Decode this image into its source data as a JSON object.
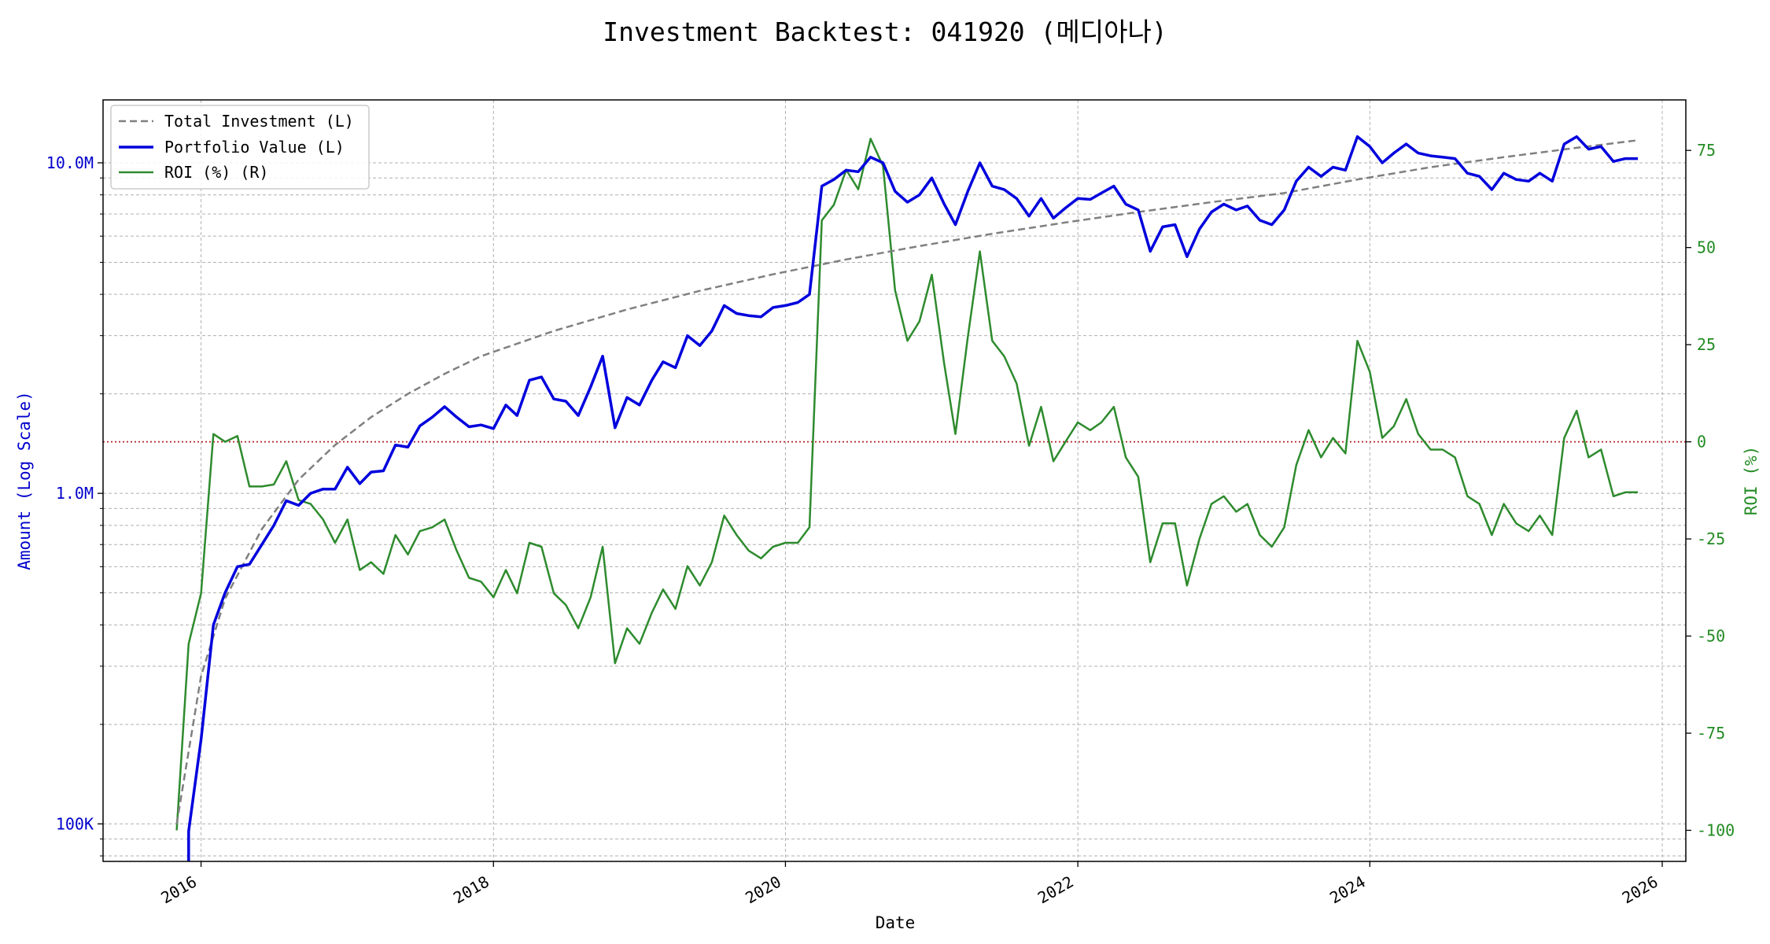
{
  "chart_data": {
    "type": "line",
    "title": "Investment Backtest: 041920 (메디아나)",
    "xlabel": "Date",
    "ylabel_left": "Amount (Log Scale)",
    "ylabel_right": "ROI (%)",
    "x_range": [
      "2015-05-01",
      "2026-03-01"
    ],
    "y_left_scale": "log",
    "y_left_range": [
      77000,
      15500000
    ],
    "y_right_range": [
      -108,
      88
    ],
    "x_ticks": [
      "2016",
      "2018",
      "2020",
      "2022",
      "2024",
      "2026"
    ],
    "x_tick_dates": [
      "2016-01-01",
      "2018-01-01",
      "2020-01-01",
      "2022-01-01",
      "2024-01-01",
      "2026-01-01"
    ],
    "y_left_ticks": [
      {
        "value": 100000,
        "label": "100K"
      },
      {
        "value": 1000000,
        "label": "1.0M"
      },
      {
        "value": 10000000,
        "label": "10.0M"
      }
    ],
    "y_right_ticks": [
      -100,
      -75,
      -50,
      -25,
      0,
      25,
      50,
      75
    ],
    "grid": true,
    "legend_position": "top-left",
    "zero_line": {
      "axis": "right",
      "value": 0,
      "color": "#b22222",
      "style": "dotted"
    },
    "colors": {
      "investment": "#808080",
      "portfolio": "#0000dd",
      "roi": "#2e8b2e"
    },
    "series": [
      {
        "name": "Total Investment (L)",
        "axis": "left",
        "style": "dashed",
        "x": [
          "2015-11-01",
          "2016-01-01",
          "2016-03-01",
          "2016-06-01",
          "2016-09-01",
          "2016-12-01",
          "2017-03-01",
          "2017-06-01",
          "2017-09-01",
          "2017-12-01",
          "2018-06-01",
          "2018-12-01",
          "2019-06-01",
          "2019-12-01",
          "2020-06-01",
          "2020-12-01",
          "2021-06-01",
          "2021-12-01",
          "2022-06-01",
          "2022-12-01",
          "2023-06-01",
          "2023-12-01",
          "2024-06-01",
          "2024-12-01",
          "2025-06-01",
          "2025-11-01"
        ],
        "y": [
          100000,
          280000,
          480000,
          780000,
          1100000,
          1400000,
          1700000,
          2000000,
          2300000,
          2600000,
          3100000,
          3600000,
          4100000,
          4600000,
          5100000,
          5600000,
          6100000,
          6600000,
          7100000,
          7600000,
          8100000,
          8900000,
          9700000,
          10400000,
          11100000,
          11700000
        ]
      },
      {
        "name": "Portfolio Value (L)",
        "axis": "left",
        "style": "solid",
        "x": [
          "2015-12-01",
          "2015-12-01",
          "2016-01-01",
          "2016-02-01",
          "2016-03-01",
          "2016-04-01",
          "2016-05-01",
          "2016-06-01",
          "2016-07-01",
          "2016-08-01",
          "2016-09-01",
          "2016-10-01",
          "2016-11-01",
          "2016-12-01",
          "2017-01-01",
          "2017-02-01",
          "2017-03-01",
          "2017-04-01",
          "2017-05-01",
          "2017-06-01",
          "2017-07-01",
          "2017-08-01",
          "2017-09-01",
          "2017-10-01",
          "2017-11-01",
          "2017-12-01",
          "2018-01-01",
          "2018-02-01",
          "2018-03-01",
          "2018-04-01",
          "2018-05-01",
          "2018-06-01",
          "2018-07-01",
          "2018-08-01",
          "2018-09-01",
          "2018-10-01",
          "2018-11-01",
          "2018-12-01",
          "2019-01-01",
          "2019-02-01",
          "2019-03-01",
          "2019-04-01",
          "2019-05-01",
          "2019-06-01",
          "2019-07-01",
          "2019-08-01",
          "2019-09-01",
          "2019-10-01",
          "2019-11-01",
          "2019-12-01",
          "2020-01-01",
          "2020-02-01",
          "2020-03-01",
          "2020-04-01",
          "2020-05-01",
          "2020-06-01",
          "2020-07-01",
          "2020-08-01",
          "2020-09-01",
          "2020-10-01",
          "2020-11-01",
          "2020-12-01",
          "2021-01-01",
          "2021-02-01",
          "2021-03-01",
          "2021-04-01",
          "2021-05-01",
          "2021-06-01",
          "2021-07-01",
          "2021-08-01",
          "2021-09-01",
          "2021-10-01",
          "2021-11-01",
          "2021-12-01",
          "2022-01-01",
          "2022-02-01",
          "2022-03-01",
          "2022-04-01",
          "2022-05-01",
          "2022-06-01",
          "2022-07-01",
          "2022-08-01",
          "2022-09-01",
          "2022-10-01",
          "2022-11-01",
          "2022-12-01",
          "2023-01-01",
          "2023-02-01",
          "2023-03-01",
          "2023-04-01",
          "2023-05-01",
          "2023-06-01",
          "2023-07-01",
          "2023-08-01",
          "2023-09-01",
          "2023-10-01",
          "2023-11-01",
          "2023-12-01",
          "2024-01-01",
          "2024-02-01",
          "2024-03-01",
          "2024-04-01",
          "2024-05-01",
          "2024-06-01",
          "2024-07-01",
          "2024-08-01",
          "2024-09-01",
          "2024-10-01",
          "2024-11-01",
          "2024-12-01",
          "2025-01-01",
          "2025-02-01",
          "2025-03-01",
          "2025-04-01",
          "2025-05-01",
          "2025-06-01",
          "2025-07-01",
          "2025-08-01",
          "2025-09-01",
          "2025-10-01",
          "2025-11-01"
        ],
        "y": [
          77000,
          95000,
          180000,
          400000,
          500000,
          600000,
          610000,
          700000,
          800000,
          950000,
          920000,
          1000000,
          1030000,
          1030000,
          1200000,
          1070000,
          1160000,
          1170000,
          1400000,
          1380000,
          1600000,
          1700000,
          1830000,
          1700000,
          1590000,
          1610000,
          1570000,
          1850000,
          1720000,
          2200000,
          2250000,
          1930000,
          1900000,
          1720000,
          2100000,
          2600000,
          1580000,
          1950000,
          1850000,
          2200000,
          2500000,
          2400000,
          3000000,
          2800000,
          3100000,
          3700000,
          3500000,
          3450000,
          3420000,
          3650000,
          3700000,
          3780000,
          4000000,
          8500000,
          8900000,
          9500000,
          9400000,
          10400000,
          10000000,
          8200000,
          7600000,
          8000000,
          9000000,
          7500000,
          6500000,
          8200000,
          10000000,
          8500000,
          8300000,
          7800000,
          6900000,
          7800000,
          6800000,
          7300000,
          7800000,
          7750000,
          8100000,
          8500000,
          7500000,
          7200000,
          5400000,
          6400000,
          6500000,
          5200000,
          6300000,
          7100000,
          7500000,
          7200000,
          7400000,
          6700000,
          6500000,
          7200000,
          8800000,
          9700000,
          9100000,
          9700000,
          9500000,
          12000000,
          11200000,
          10000000,
          10700000,
          11400000,
          10700000,
          10500000,
          10400000,
          10300000,
          9300000,
          9100000,
          8300000,
          9300000,
          8900000,
          8800000,
          9300000,
          8800000,
          11400000,
          12000000,
          11000000,
          11200000,
          10100000,
          10300000,
          10300000
        ]
      },
      {
        "name": "ROI (%) (R)",
        "axis": "right",
        "style": "solid",
        "x": [
          "2015-11-01",
          "2015-12-01",
          "2016-01-01",
          "2016-02-01",
          "2016-03-01",
          "2016-04-01",
          "2016-05-01",
          "2016-06-01",
          "2016-07-01",
          "2016-08-01",
          "2016-09-01",
          "2016-10-01",
          "2016-11-01",
          "2016-12-01",
          "2017-01-01",
          "2017-02-01",
          "2017-03-01",
          "2017-04-01",
          "2017-05-01",
          "2017-06-01",
          "2017-07-01",
          "2017-08-01",
          "2017-09-01",
          "2017-10-01",
          "2017-11-01",
          "2017-12-01",
          "2018-01-01",
          "2018-02-01",
          "2018-03-01",
          "2018-04-01",
          "2018-05-01",
          "2018-06-01",
          "2018-07-01",
          "2018-08-01",
          "2018-09-01",
          "2018-10-01",
          "2018-11-01",
          "2018-12-01",
          "2019-01-01",
          "2019-02-01",
          "2019-03-01",
          "2019-04-01",
          "2019-05-01",
          "2019-06-01",
          "2019-07-01",
          "2019-08-01",
          "2019-09-01",
          "2019-10-01",
          "2019-11-01",
          "2019-12-01",
          "2020-01-01",
          "2020-02-01",
          "2020-03-01",
          "2020-04-01",
          "2020-05-01",
          "2020-06-01",
          "2020-07-01",
          "2020-08-01",
          "2020-09-01",
          "2020-10-01",
          "2020-11-01",
          "2020-12-01",
          "2021-01-01",
          "2021-02-01",
          "2021-03-01",
          "2021-04-01",
          "2021-05-01",
          "2021-06-01",
          "2021-07-01",
          "2021-08-01",
          "2021-09-01",
          "2021-10-01",
          "2021-11-01",
          "2021-12-01",
          "2022-01-01",
          "2022-02-01",
          "2022-03-01",
          "2022-04-01",
          "2022-05-01",
          "2022-06-01",
          "2022-07-01",
          "2022-08-01",
          "2022-09-01",
          "2022-10-01",
          "2022-11-01",
          "2022-12-01",
          "2023-01-01",
          "2023-02-01",
          "2023-03-01",
          "2023-04-01",
          "2023-05-01",
          "2023-06-01",
          "2023-07-01",
          "2023-08-01",
          "2023-09-01",
          "2023-10-01",
          "2023-11-01",
          "2023-12-01",
          "2024-01-01",
          "2024-02-01",
          "2024-03-01",
          "2024-04-01",
          "2024-05-01",
          "2024-06-01",
          "2024-07-01",
          "2024-08-01",
          "2024-09-01",
          "2024-10-01",
          "2024-11-01",
          "2024-12-01",
          "2025-01-01",
          "2025-02-01",
          "2025-03-01",
          "2025-04-01",
          "2025-05-01",
          "2025-06-01",
          "2025-07-01",
          "2025-08-01",
          "2025-09-01",
          "2025-10-01",
          "2025-11-01"
        ],
        "y": [
          -100,
          -52,
          -39,
          2,
          0,
          1.5,
          -11.5,
          -11.5,
          -11,
          -5,
          -15,
          -16,
          -20,
          -26,
          -20,
          -33,
          -31,
          -34,
          -24,
          -29,
          -23,
          -22,
          -20,
          -28,
          -35,
          -36,
          -40,
          -33,
          -39,
          -26,
          -27,
          -39,
          -42,
          -48,
          -40,
          -27,
          -57,
          -48,
          -52,
          -44,
          -38,
          -43,
          -32,
          -37,
          -31,
          -19,
          -24,
          -28,
          -30,
          -27,
          -26,
          -26,
          -22,
          57,
          61,
          70,
          65,
          78,
          71,
          39,
          26,
          31,
          43,
          20,
          2,
          27,
          49,
          26,
          22,
          15,
          -1,
          9,
          -5,
          0,
          5,
          3,
          5,
          9,
          -4,
          -9,
          -31,
          -21,
          -21,
          -37,
          -25,
          -16,
          -14,
          -18,
          -16,
          -24,
          -27,
          -22,
          -6,
          3,
          -4,
          1,
          -3,
          26,
          18,
          1,
          4,
          11,
          2,
          -2,
          -2,
          -4,
          -14,
          -16,
          -24,
          -16,
          -21,
          -23,
          -19,
          -24,
          1,
          8,
          -4,
          -2,
          -14,
          -13,
          -13
        ]
      }
    ]
  }
}
